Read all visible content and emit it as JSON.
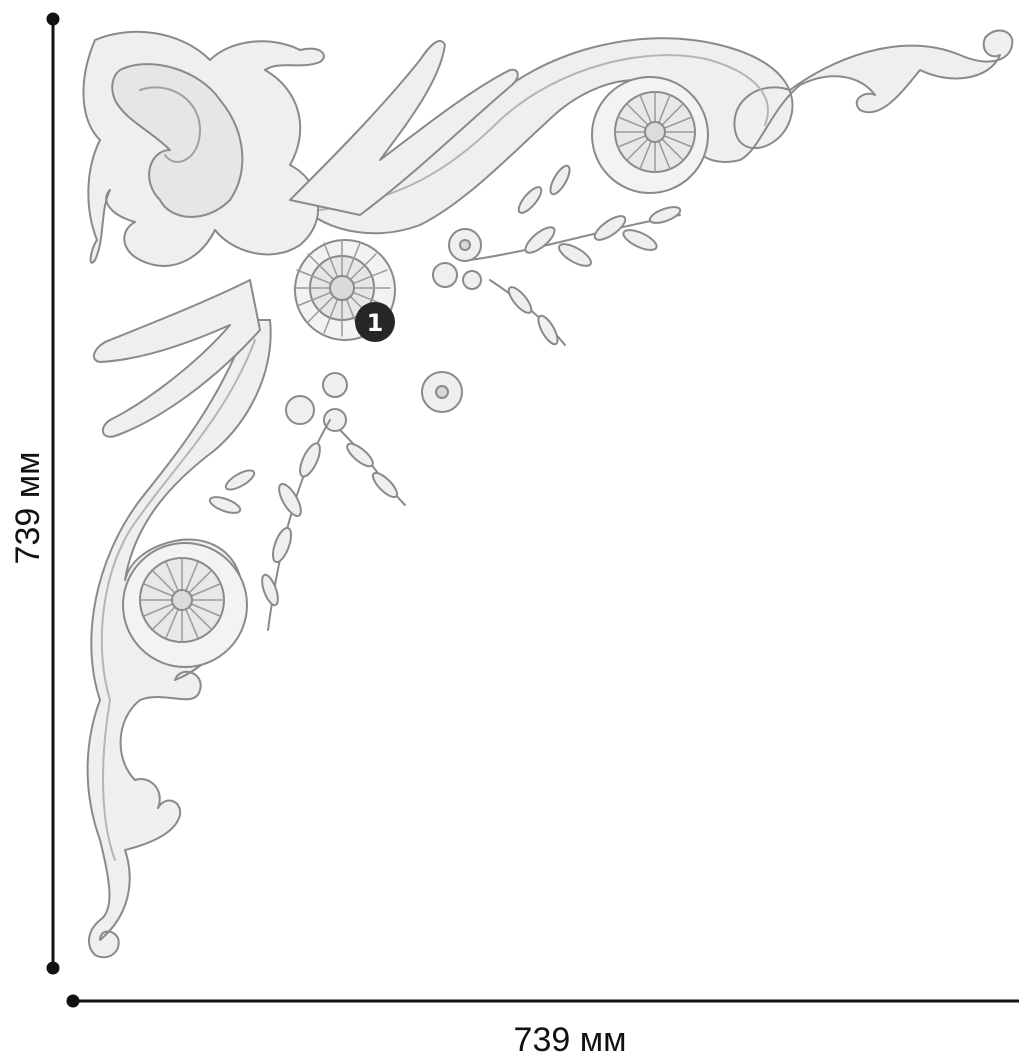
{
  "dimensions": {
    "height_label": "739 мм",
    "width_label": "739 мм"
  },
  "callouts": [
    {
      "number": "1"
    }
  ],
  "colors": {
    "line": "#111111",
    "ornament_fill": "#efefef",
    "ornament_stroke": "#8a8a8a",
    "ornament_shadow": "#c9c9c9",
    "callout_bg": "#262626",
    "callout_text": "#ffffff"
  }
}
